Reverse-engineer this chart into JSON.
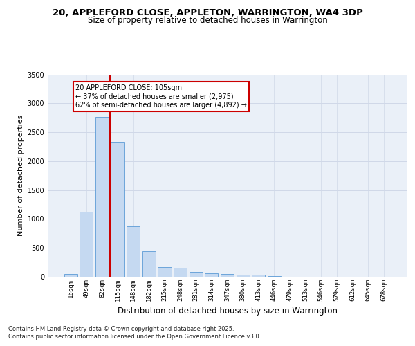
{
  "title_line1": "20, APPLEFORD CLOSE, APPLETON, WARRINGTON, WA4 3DP",
  "title_line2": "Size of property relative to detached houses in Warrington",
  "xlabel": "Distribution of detached houses by size in Warrington",
  "ylabel": "Number of detached properties",
  "categories": [
    "16sqm",
    "49sqm",
    "82sqm",
    "115sqm",
    "148sqm",
    "182sqm",
    "215sqm",
    "248sqm",
    "281sqm",
    "314sqm",
    "347sqm",
    "380sqm",
    "413sqm",
    "446sqm",
    "479sqm",
    "513sqm",
    "546sqm",
    "579sqm",
    "612sqm",
    "645sqm",
    "678sqm"
  ],
  "values": [
    50,
    1120,
    2760,
    2330,
    870,
    440,
    165,
    160,
    85,
    60,
    45,
    40,
    30,
    10,
    5,
    5,
    2,
    1,
    1,
    1,
    1
  ],
  "bar_color": "#c5d9f1",
  "bar_edge_color": "#5b9bd5",
  "vline_color": "#cc0000",
  "annotation_text": "20 APPLEFORD CLOSE: 105sqm\n← 37% of detached houses are smaller (2,975)\n62% of semi-detached houses are larger (4,892) →",
  "annotation_box_color": "#ffffff",
  "annotation_box_edge": "#cc0000",
  "ylim": [
    0,
    3500
  ],
  "yticks": [
    0,
    500,
    1000,
    1500,
    2000,
    2500,
    3000,
    3500
  ],
  "grid_color": "#d0d8e8",
  "bg_color": "#eaf0f8",
  "footer_line1": "Contains HM Land Registry data © Crown copyright and database right 2025.",
  "footer_line2": "Contains public sector information licensed under the Open Government Licence v3.0.",
  "title_fontsize": 9.5,
  "subtitle_fontsize": 8.5,
  "axis_label_fontsize": 8,
  "tick_fontsize": 6.5,
  "annotation_fontsize": 7,
  "footer_fontsize": 6
}
